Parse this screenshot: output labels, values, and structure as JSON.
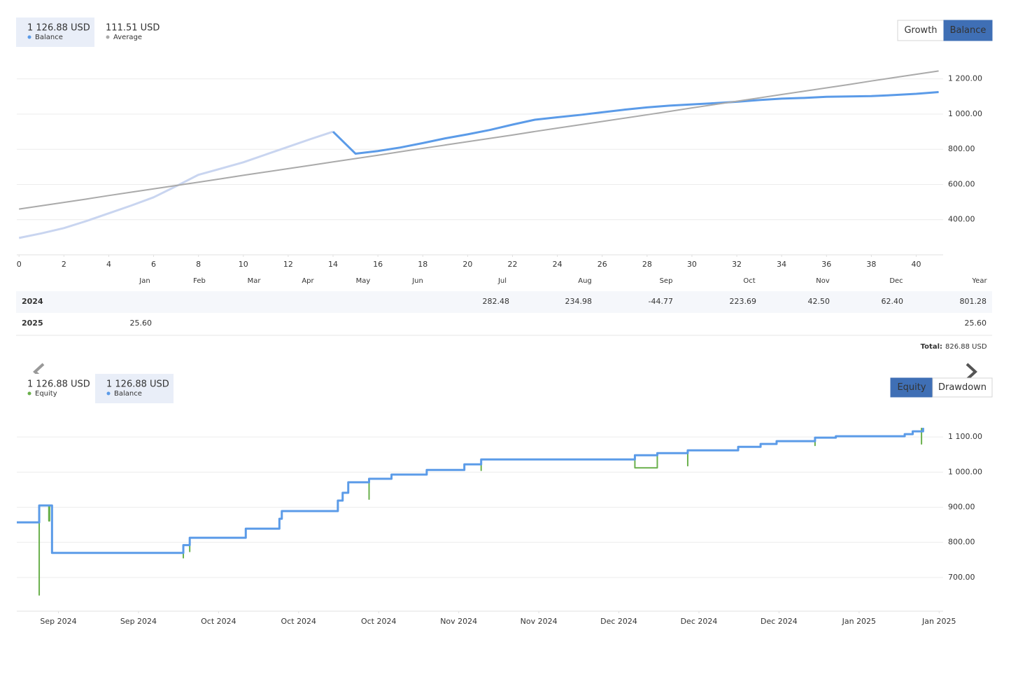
{
  "chart_data": [
    {
      "type": "line",
      "x": [
        0,
        1,
        2,
        3,
        4,
        5,
        6,
        7,
        8,
        9,
        10,
        11,
        12,
        13,
        14,
        15,
        16,
        17,
        18,
        19,
        20,
        21,
        22,
        23,
        24,
        25,
        26,
        27,
        28,
        29,
        30,
        31,
        32,
        33,
        34,
        35,
        36,
        37,
        38,
        39,
        40,
        41
      ],
      "xlim": [
        -0.1,
        41.2
      ],
      "xticks": [
        0,
        2,
        4,
        6,
        8,
        10,
        12,
        14,
        16,
        18,
        20,
        22,
        24,
        26,
        28,
        30,
        32,
        34,
        36,
        38,
        40
      ],
      "ylim": [
        200,
        1330
      ],
      "yticks": [
        {
          "value": 400,
          "label": "400.00"
        },
        {
          "value": 600,
          "label": "600.00"
        },
        {
          "value": 800,
          "label": "800.00"
        },
        {
          "value": 1000,
          "label": "1 000.00"
        },
        {
          "value": 1200,
          "label": "1 200.00"
        }
      ],
      "grid": true,
      "series": [
        {
          "color": "#c9d5f0",
          "values": [
            296,
            322,
            352,
            392,
            436,
            480,
            527,
            590,
            655,
            690,
            726,
            770,
            814,
            858,
            900,
            null,
            null,
            null,
            null,
            null,
            null,
            null,
            null,
            null,
            null,
            null,
            null,
            null,
            null,
            null,
            null,
            null,
            null,
            null,
            null,
            null,
            null,
            null,
            null,
            null,
            null,
            null
          ]
        },
        {
          "name": "Balance",
          "summary": "1 126.88 USD",
          "color": "#5b9be8",
          "values": [
            null,
            null,
            null,
            null,
            null,
            null,
            null,
            null,
            null,
            null,
            null,
            null,
            null,
            null,
            900,
            775,
            790,
            810,
            835,
            862,
            885,
            910,
            940,
            968,
            982,
            995,
            1010,
            1025,
            1038,
            1048,
            1055,
            1062,
            1070,
            1080,
            1088,
            1092,
            1098,
            1100,
            1102,
            1108,
            1115,
            1125
          ]
        },
        {
          "name": "Average",
          "summary": "111.51 USD",
          "color": "#aaaaaa",
          "values": [
            460,
            479,
            498,
            517,
            537,
            556,
            575,
            594,
            613,
            632,
            652,
            671,
            690,
            709,
            728,
            747,
            766,
            786,
            805,
            824,
            843,
            862,
            881,
            901,
            920,
            939,
            958,
            977,
            996,
            1015,
            1035,
            1054,
            1073,
            1092,
            1111,
            1130,
            1149,
            1168,
            1188,
            1207,
            1226,
            1245
          ]
        }
      ],
      "selected_series": 1,
      "buttons": [
        "Growth",
        "Balance"
      ],
      "active_button": 1
    },
    {
      "type": "line",
      "step": true,
      "xlim": [
        -0.52,
        11.05
      ],
      "xticks": [
        {
          "value": 0,
          "label": "Sep 2024"
        },
        {
          "value": 1,
          "label": "Sep 2024"
        },
        {
          "value": 2,
          "label": "Oct 2024"
        },
        {
          "value": 3,
          "label": "Oct 2024"
        },
        {
          "value": 4,
          "label": "Oct 2024"
        },
        {
          "value": 5,
          "label": "Nov 2024"
        },
        {
          "value": 6,
          "label": "Nov 2024"
        },
        {
          "value": 7,
          "label": "Dec 2024"
        },
        {
          "value": 8,
          "label": "Dec 2024"
        },
        {
          "value": 9,
          "label": "Dec 2024"
        },
        {
          "value": 10,
          "label": "Jan 2025"
        },
        {
          "value": 11,
          "label": "Jan 2025"
        }
      ],
      "ylim": [
        604,
        1188
      ],
      "yticks": [
        {
          "value": 700,
          "label": "700.00"
        },
        {
          "value": 800,
          "label": "800.00"
        },
        {
          "value": 900,
          "label": "900.00"
        },
        {
          "value": 1000,
          "label": "1 000.00"
        },
        {
          "value": 1100,
          "label": "1 100.00"
        }
      ],
      "grid": true,
      "series": [
        {
          "name": "Equity",
          "summary": "1 126.88 USD",
          "color": "#6ab04c",
          "x": [
            -0.52,
            -0.24,
            -0.24,
            -0.12,
            -0.11,
            -0.08,
            1.56,
            1.56,
            1.64,
            1.64,
            2.34,
            2.76,
            2.79,
            3.49,
            3.55,
            3.62,
            3.88,
            3.88,
            4.16,
            4.6,
            4.6,
            5.07,
            5.28,
            5.28,
            7.2,
            7.48,
            7.48,
            7.86,
            7.86,
            8.49,
            8.77,
            8.97,
            9.45,
            9.45,
            9.71,
            10.57,
            10.67,
            10.78,
            10.78
          ],
          "values": [
            857,
            650,
            905,
            861,
            905,
            770,
            756,
            792,
            774,
            813,
            839,
            867,
            889,
            919,
            941,
            971,
            923,
            981,
            993,
            995,
            1006,
            1022,
            1005,
            1036,
            1012,
            1012,
            1054,
            1018,
            1062,
            1072,
            1080,
            1088,
            1076,
            1098,
            1102,
            1108,
            1116,
            1080,
            1126
          ]
        },
        {
          "name": "Balance",
          "summary": "1 126.88 USD",
          "color": "#5b9be8",
          "x": [
            -0.52,
            -0.24,
            -0.08,
            1.56,
            1.64,
            2.34,
            2.76,
            2.79,
            3.49,
            3.55,
            3.62,
            3.88,
            4.16,
            4.6,
            5.07,
            5.28,
            7.2,
            7.48,
            7.86,
            8.49,
            8.77,
            8.97,
            9.45,
            9.71,
            10.57,
            10.67,
            10.8
          ],
          "values": [
            857,
            905,
            770,
            792,
            813,
            839,
            867,
            889,
            919,
            941,
            971,
            981,
            993,
            1006,
            1022,
            1036,
            1048,
            1054,
            1062,
            1072,
            1080,
            1088,
            1098,
            1102,
            1108,
            1116,
            1126
          ]
        }
      ],
      "selected_series": 1,
      "buttons": [
        "Equity",
        "Drawdown"
      ],
      "active_button": 0
    }
  ],
  "monthly_table": {
    "columns": [
      "Jan",
      "Feb",
      "Mar",
      "Apr",
      "May",
      "Jun",
      "Jul",
      "Aug",
      "Sep",
      "Oct",
      "Nov",
      "Dec",
      "Year"
    ],
    "rows": [
      {
        "year": "2024",
        "cells": [
          null,
          null,
          null,
          null,
          null,
          null,
          "282.48",
          "234.98",
          "-44.77",
          "223.69",
          "42.50",
          "62.40",
          "801.28"
        ]
      },
      {
        "year": "2025",
        "cells": [
          "25.60",
          null,
          null,
          null,
          null,
          null,
          null,
          null,
          null,
          null,
          null,
          null,
          "25.60"
        ]
      }
    ],
    "total_label": "Total:",
    "total_value": "826.88 USD"
  }
}
